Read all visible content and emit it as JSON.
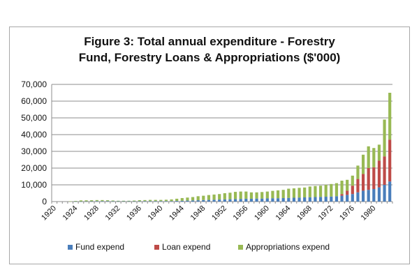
{
  "colors": {
    "fund": "#4a7ebb",
    "loan": "#be4b48",
    "approp": "#98b954"
  },
  "chart_data": {
    "type": "bar",
    "stacked": true,
    "title_lines": [
      "Figure 3: Total annual expenditure - Forestry",
      "Fund, Forestry Loans & Appropriations ($'000)"
    ],
    "xlabel": "",
    "ylabel": "",
    "ylim": [
      0,
      70000
    ],
    "yticks": [
      0,
      10000,
      20000,
      30000,
      40000,
      50000,
      60000,
      70000
    ],
    "ytick_labels": [
      "0",
      "10,000",
      "20,000",
      "30,000",
      "40,000",
      "50,000",
      "60,000",
      "70,000"
    ],
    "x_tick_labels": [
      "1920",
      "1924",
      "1928",
      "1932",
      "1936",
      "1940",
      "1944",
      "1948",
      "1952",
      "1956",
      "1960",
      "1964",
      "1968",
      "1972",
      "1976",
      "1980"
    ],
    "legend_position": "bottom",
    "grid": "horizontal",
    "categories": [
      "1920",
      "1921",
      "1922",
      "1923",
      "1924",
      "1925",
      "1926",
      "1927",
      "1928",
      "1929",
      "1930",
      "1931",
      "1932",
      "1933",
      "1934",
      "1935",
      "1936",
      "1937",
      "1938",
      "1939",
      "1940",
      "1941",
      "1942",
      "1943",
      "1944",
      "1945",
      "1946",
      "1947",
      "1948",
      "1949",
      "1950",
      "1951",
      "1952",
      "1953",
      "1954",
      "1955",
      "1956",
      "1957",
      "1958",
      "1959",
      "1960",
      "1961",
      "1962",
      "1963",
      "1964",
      "1965",
      "1966",
      "1967",
      "1968",
      "1969",
      "1970",
      "1971",
      "1972",
      "1973",
      "1974",
      "1975",
      "1976",
      "1977",
      "1978",
      "1979",
      "1980",
      "1981",
      "1982",
      "1983"
    ],
    "series": [
      {
        "name": "Fund expend",
        "values": [
          0,
          0,
          0,
          0,
          100,
          100,
          150,
          200,
          300,
          300,
          300,
          250,
          200,
          200,
          200,
          200,
          250,
          300,
          300,
          300,
          300,
          300,
          300,
          400,
          500,
          600,
          700,
          800,
          900,
          1000,
          1100,
          1200,
          1300,
          1400,
          1500,
          1600,
          1700,
          1700,
          1800,
          1800,
          1900,
          2000,
          2000,
          2100,
          2200,
          2300,
          2400,
          2500,
          2600,
          2700,
          2800,
          2900,
          3000,
          3200,
          3500,
          4000,
          4500,
          5500,
          6500,
          7000,
          7500,
          8500,
          10000,
          12000
        ]
      },
      {
        "name": "Loan expend",
        "values": [
          0,
          0,
          0,
          0,
          0,
          0,
          0,
          0,
          0,
          0,
          0,
          0,
          0,
          0,
          0,
          0,
          0,
          0,
          0,
          0,
          0,
          0,
          0,
          0,
          0,
          0,
          0,
          0,
          0,
          0,
          0,
          0,
          0,
          0,
          0,
          0,
          0,
          0,
          0,
          0,
          0,
          0,
          0,
          0,
          0,
          0,
          0,
          0,
          0,
          0,
          0,
          0,
          0,
          0,
          1000,
          2500,
          5000,
          8000,
          10000,
          13000,
          13000,
          16000,
          17000,
          25000
        ]
      },
      {
        "name": "Appropriations expend",
        "values": [
          0,
          0,
          0,
          200,
          300,
          600,
          600,
          600,
          600,
          600,
          500,
          400,
          300,
          300,
          300,
          400,
          600,
          600,
          700,
          700,
          700,
          800,
          1000,
          1300,
          1600,
          1800,
          2000,
          2400,
          2600,
          2900,
          3100,
          3300,
          3700,
          3900,
          4300,
          4400,
          4300,
          3800,
          3700,
          3900,
          4100,
          4400,
          4700,
          4900,
          5500,
          5600,
          5800,
          5900,
          6400,
          6600,
          6700,
          7100,
          7500,
          7800,
          8000,
          6500,
          6000,
          8000,
          11500,
          13000,
          11500,
          9500,
          22000,
          28000
        ]
      }
    ]
  }
}
